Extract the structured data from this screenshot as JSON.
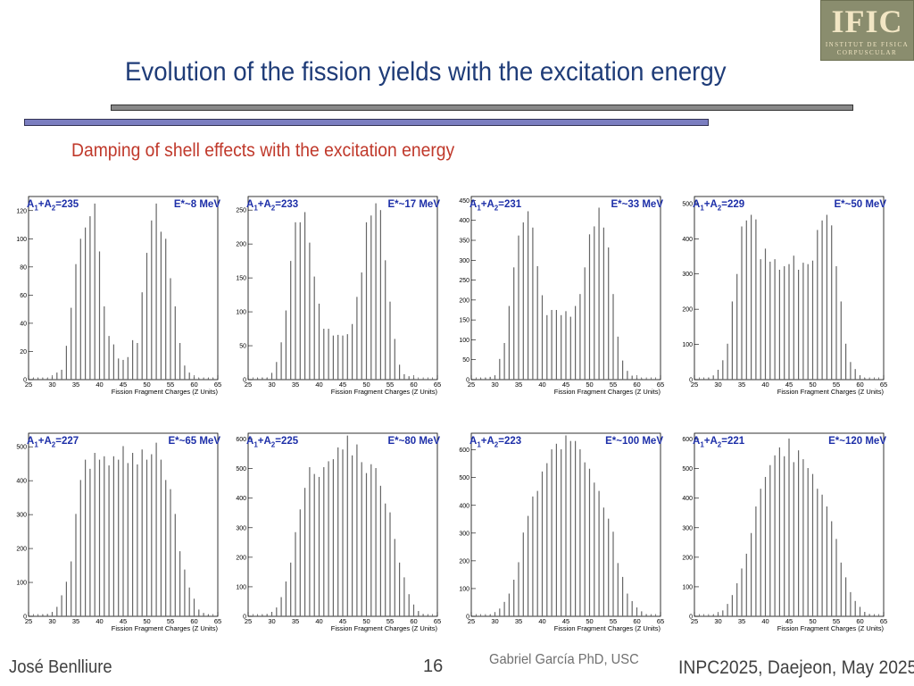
{
  "logo": {
    "main": "IFIC",
    "line1": "INSTITUT DE FISICA",
    "line2": "CORPUSCULAR"
  },
  "title": "Evolution of the fission yields with the excitation energy",
  "subtitle": "Damping of shell effects with the excitation energy",
  "footer": {
    "author": "José Benlliure",
    "page": "16",
    "credit": "Gabriel García PhD, USC",
    "conference": "INPC2025, Daejeon, May 2025"
  },
  "chart_data": [
    {
      "type": "bar",
      "label_a": "1",
      "label_b": "2",
      "mass": "235",
      "label_e": "E*~8 MeV",
      "xlabel": "Fission Fragment Charges (Z Units)",
      "xlim": [
        25,
        65
      ],
      "xticks": [
        25,
        30,
        35,
        40,
        45,
        50,
        55,
        60,
        65
      ],
      "ylim": [
        0,
        130
      ],
      "yticks": [
        0,
        20,
        40,
        60,
        80,
        100,
        120
      ],
      "x": [
        26,
        27,
        28,
        29,
        30,
        31,
        32,
        33,
        34,
        35,
        36,
        37,
        38,
        39,
        40,
        41,
        42,
        43,
        44,
        45,
        46,
        47,
        48,
        49,
        50,
        51,
        52,
        53,
        54,
        55,
        56,
        57,
        58,
        59,
        60,
        61,
        62,
        63,
        64
      ],
      "values": [
        1,
        1,
        1,
        1,
        2,
        5,
        7,
        24,
        51,
        82,
        100,
        108,
        116,
        125,
        91,
        52,
        31,
        25,
        15,
        14,
        16,
        28,
        26,
        62,
        90,
        113,
        125,
        105,
        100,
        72,
        52,
        26,
        10,
        5,
        2,
        1,
        1,
        1,
        1
      ]
    },
    {
      "type": "bar",
      "label_a": "1",
      "label_b": "2",
      "mass": "233",
      "label_e": "E*~17 MeV",
      "xlabel": "Fission Fragment Charges (Z Units)",
      "xlim": [
        25,
        65
      ],
      "xticks": [
        25,
        30,
        35,
        40,
        45,
        50,
        55,
        60,
        65
      ],
      "ylim": [
        0,
        270
      ],
      "yticks": [
        0,
        50,
        100,
        150,
        200,
        250
      ],
      "x": [
        26,
        27,
        28,
        29,
        30,
        31,
        32,
        33,
        34,
        35,
        36,
        37,
        38,
        39,
        40,
        41,
        42,
        43,
        44,
        45,
        46,
        47,
        48,
        49,
        50,
        51,
        52,
        53,
        54,
        55,
        56,
        57,
        58,
        59,
        60,
        61,
        62,
        63,
        64
      ],
      "values": [
        1,
        2,
        3,
        3,
        10,
        26,
        55,
        102,
        175,
        232,
        232,
        247,
        202,
        152,
        112,
        75,
        75,
        65,
        66,
        65,
        67,
        82,
        122,
        158,
        232,
        242,
        260,
        250,
        176,
        115,
        60,
        22,
        8,
        5,
        3,
        1,
        1,
        1,
        1
      ]
    },
    {
      "type": "bar",
      "label_a": "1",
      "label_b": "2",
      "mass": "231",
      "label_e": "E*~33 MeV",
      "xlabel": "Fission Fragment Charges (Z Units)",
      "xlim": [
        25,
        65
      ],
      "xticks": [
        25,
        30,
        35,
        40,
        45,
        50,
        55,
        60,
        65
      ],
      "ylim": [
        0,
        460
      ],
      "yticks": [
        0,
        50,
        100,
        150,
        200,
        250,
        300,
        350,
        400,
        450
      ],
      "x": [
        26,
        27,
        28,
        29,
        30,
        31,
        32,
        33,
        34,
        35,
        36,
        37,
        38,
        39,
        40,
        41,
        42,
        43,
        44,
        45,
        46,
        47,
        48,
        49,
        50,
        51,
        52,
        53,
        54,
        55,
        56,
        57,
        58,
        59,
        60,
        61,
        62,
        63,
        64
      ],
      "values": [
        2,
        3,
        5,
        7,
        10,
        52,
        92,
        185,
        282,
        362,
        395,
        423,
        382,
        285,
        212,
        162,
        175,
        175,
        162,
        172,
        158,
        185,
        215,
        282,
        365,
        385,
        432,
        382,
        332,
        215,
        108,
        48,
        22,
        10,
        5,
        3,
        2,
        1,
        1
      ]
    },
    {
      "type": "bar",
      "label_a": "1",
      "label_b": "2",
      "mass": "229",
      "label_e": "E*~50 MeV",
      "xlabel": "Fission Fragment Charges (Z Units)",
      "xlim": [
        25,
        65
      ],
      "xticks": [
        25,
        30,
        35,
        40,
        45,
        50,
        55,
        60,
        65
      ],
      "ylim": [
        0,
        520
      ],
      "yticks": [
        0,
        100,
        200,
        300,
        400,
        500
      ],
      "x": [
        26,
        27,
        28,
        29,
        30,
        31,
        32,
        33,
        34,
        35,
        36,
        37,
        38,
        39,
        40,
        41,
        42,
        43,
        44,
        45,
        46,
        47,
        48,
        49,
        50,
        51,
        52,
        53,
        54,
        55,
        56,
        57,
        58,
        59,
        60,
        61,
        62,
        63,
        64
      ],
      "values": [
        1,
        3,
        6,
        12,
        28,
        55,
        102,
        222,
        300,
        435,
        452,
        468,
        455,
        342,
        372,
        335,
        342,
        312,
        322,
        328,
        352,
        312,
        332,
        328,
        338,
        425,
        452,
        468,
        438,
        322,
        222,
        102,
        50,
        30,
        12,
        5,
        3,
        2,
        1
      ]
    },
    {
      "type": "bar",
      "label_a": "1",
      "label_b": "2",
      "mass": "227",
      "label_e": "E*~65 MeV",
      "xlabel": "Fission Fragment Charges (Z Units)",
      "xlim": [
        25,
        65
      ],
      "xticks": [
        25,
        30,
        35,
        40,
        45,
        50,
        55,
        60,
        65
      ],
      "ylim": [
        0,
        540
      ],
      "yticks": [
        0,
        100,
        200,
        300,
        400,
        500
      ],
      "x": [
        26,
        27,
        28,
        29,
        30,
        31,
        32,
        33,
        34,
        35,
        36,
        37,
        38,
        39,
        40,
        41,
        42,
        43,
        44,
        45,
        46,
        47,
        48,
        49,
        50,
        51,
        52,
        53,
        54,
        55,
        56,
        57,
        58,
        59,
        60,
        61,
        62,
        63,
        64
      ],
      "values": [
        2,
        3,
        5,
        7,
        12,
        28,
        62,
        102,
        162,
        302,
        402,
        462,
        435,
        482,
        462,
        472,
        445,
        472,
        462,
        502,
        452,
        482,
        448,
        492,
        462,
        478,
        512,
        462,
        402,
        375,
        302,
        192,
        138,
        85,
        52,
        20,
        10,
        5,
        2
      ]
    },
    {
      "type": "bar",
      "label_a": "1",
      "label_b": "2",
      "mass": "225",
      "label_e": "E*~80 MeV",
      "xlabel": "Fission Fragment Charges (Z Units)",
      "xlim": [
        25,
        65
      ],
      "xticks": [
        25,
        30,
        35,
        40,
        45,
        50,
        55,
        60,
        65
      ],
      "ylim": [
        0,
        620
      ],
      "yticks": [
        0,
        100,
        200,
        300,
        400,
        500,
        600
      ],
      "x": [
        26,
        27,
        28,
        29,
        30,
        31,
        32,
        33,
        34,
        35,
        36,
        37,
        38,
        39,
        40,
        41,
        42,
        43,
        44,
        45,
        46,
        47,
        48,
        49,
        50,
        51,
        52,
        53,
        54,
        55,
        56,
        57,
        58,
        59,
        60,
        61,
        62,
        63,
        64
      ],
      "values": [
        2,
        3,
        5,
        8,
        15,
        30,
        65,
        118,
        182,
        285,
        362,
        435,
        505,
        482,
        472,
        505,
        525,
        532,
        572,
        565,
        612,
        545,
        582,
        522,
        485,
        515,
        502,
        442,
        382,
        352,
        262,
        182,
        132,
        75,
        40,
        18,
        8,
        4,
        2
      ]
    },
    {
      "type": "bar",
      "label_a": "1",
      "label_b": "2",
      "mass": "223",
      "label_e": "E*~100 MeV",
      "xlabel": "Fission Fragment Charges (Z Units)",
      "xlim": [
        25,
        65
      ],
      "xticks": [
        25,
        30,
        35,
        40,
        45,
        50,
        55,
        60,
        65
      ],
      "ylim": [
        0,
        660
      ],
      "yticks": [
        0,
        100,
        200,
        300,
        400,
        500,
        600
      ],
      "x": [
        26,
        27,
        28,
        29,
        30,
        31,
        32,
        33,
        34,
        35,
        36,
        37,
        38,
        39,
        40,
        41,
        42,
        43,
        44,
        45,
        46,
        47,
        48,
        49,
        50,
        51,
        52,
        53,
        54,
        55,
        56,
        57,
        58,
        59,
        60,
        61,
        62,
        63,
        64
      ],
      "values": [
        1,
        2,
        4,
        6,
        12,
        28,
        52,
        82,
        132,
        195,
        302,
        362,
        432,
        452,
        522,
        552,
        602,
        622,
        602,
        652,
        632,
        632,
        602,
        555,
        532,
        482,
        452,
        392,
        352,
        305,
        192,
        142,
        82,
        55,
        32,
        18,
        8,
        4,
        2
      ]
    },
    {
      "type": "bar",
      "label_a": "1",
      "label_b": "2",
      "mass": "221",
      "label_e": "E*~120 MeV",
      "xlabel": "Fission Fragment Charges (Z Units)",
      "xlim": [
        25,
        65
      ],
      "xticks": [
        25,
        30,
        35,
        40,
        45,
        50,
        55,
        60,
        65
      ],
      "ylim": [
        0,
        620
      ],
      "yticks": [
        0,
        100,
        200,
        300,
        400,
        500,
        600
      ],
      "x": [
        26,
        27,
        28,
        29,
        30,
        31,
        32,
        33,
        34,
        35,
        36,
        37,
        38,
        39,
        40,
        41,
        42,
        43,
        44,
        45,
        46,
        47,
        48,
        49,
        50,
        51,
        52,
        53,
        54,
        55,
        56,
        57,
        58,
        59,
        60,
        61,
        62,
        63,
        64
      ],
      "values": [
        1,
        2,
        3,
        5,
        10,
        20,
        42,
        72,
        112,
        162,
        212,
        282,
        372,
        432,
        472,
        512,
        545,
        572,
        542,
        602,
        522,
        562,
        532,
        502,
        482,
        432,
        412,
        372,
        322,
        262,
        182,
        132,
        82,
        52,
        32,
        15,
        8,
        4,
        2
      ]
    }
  ]
}
